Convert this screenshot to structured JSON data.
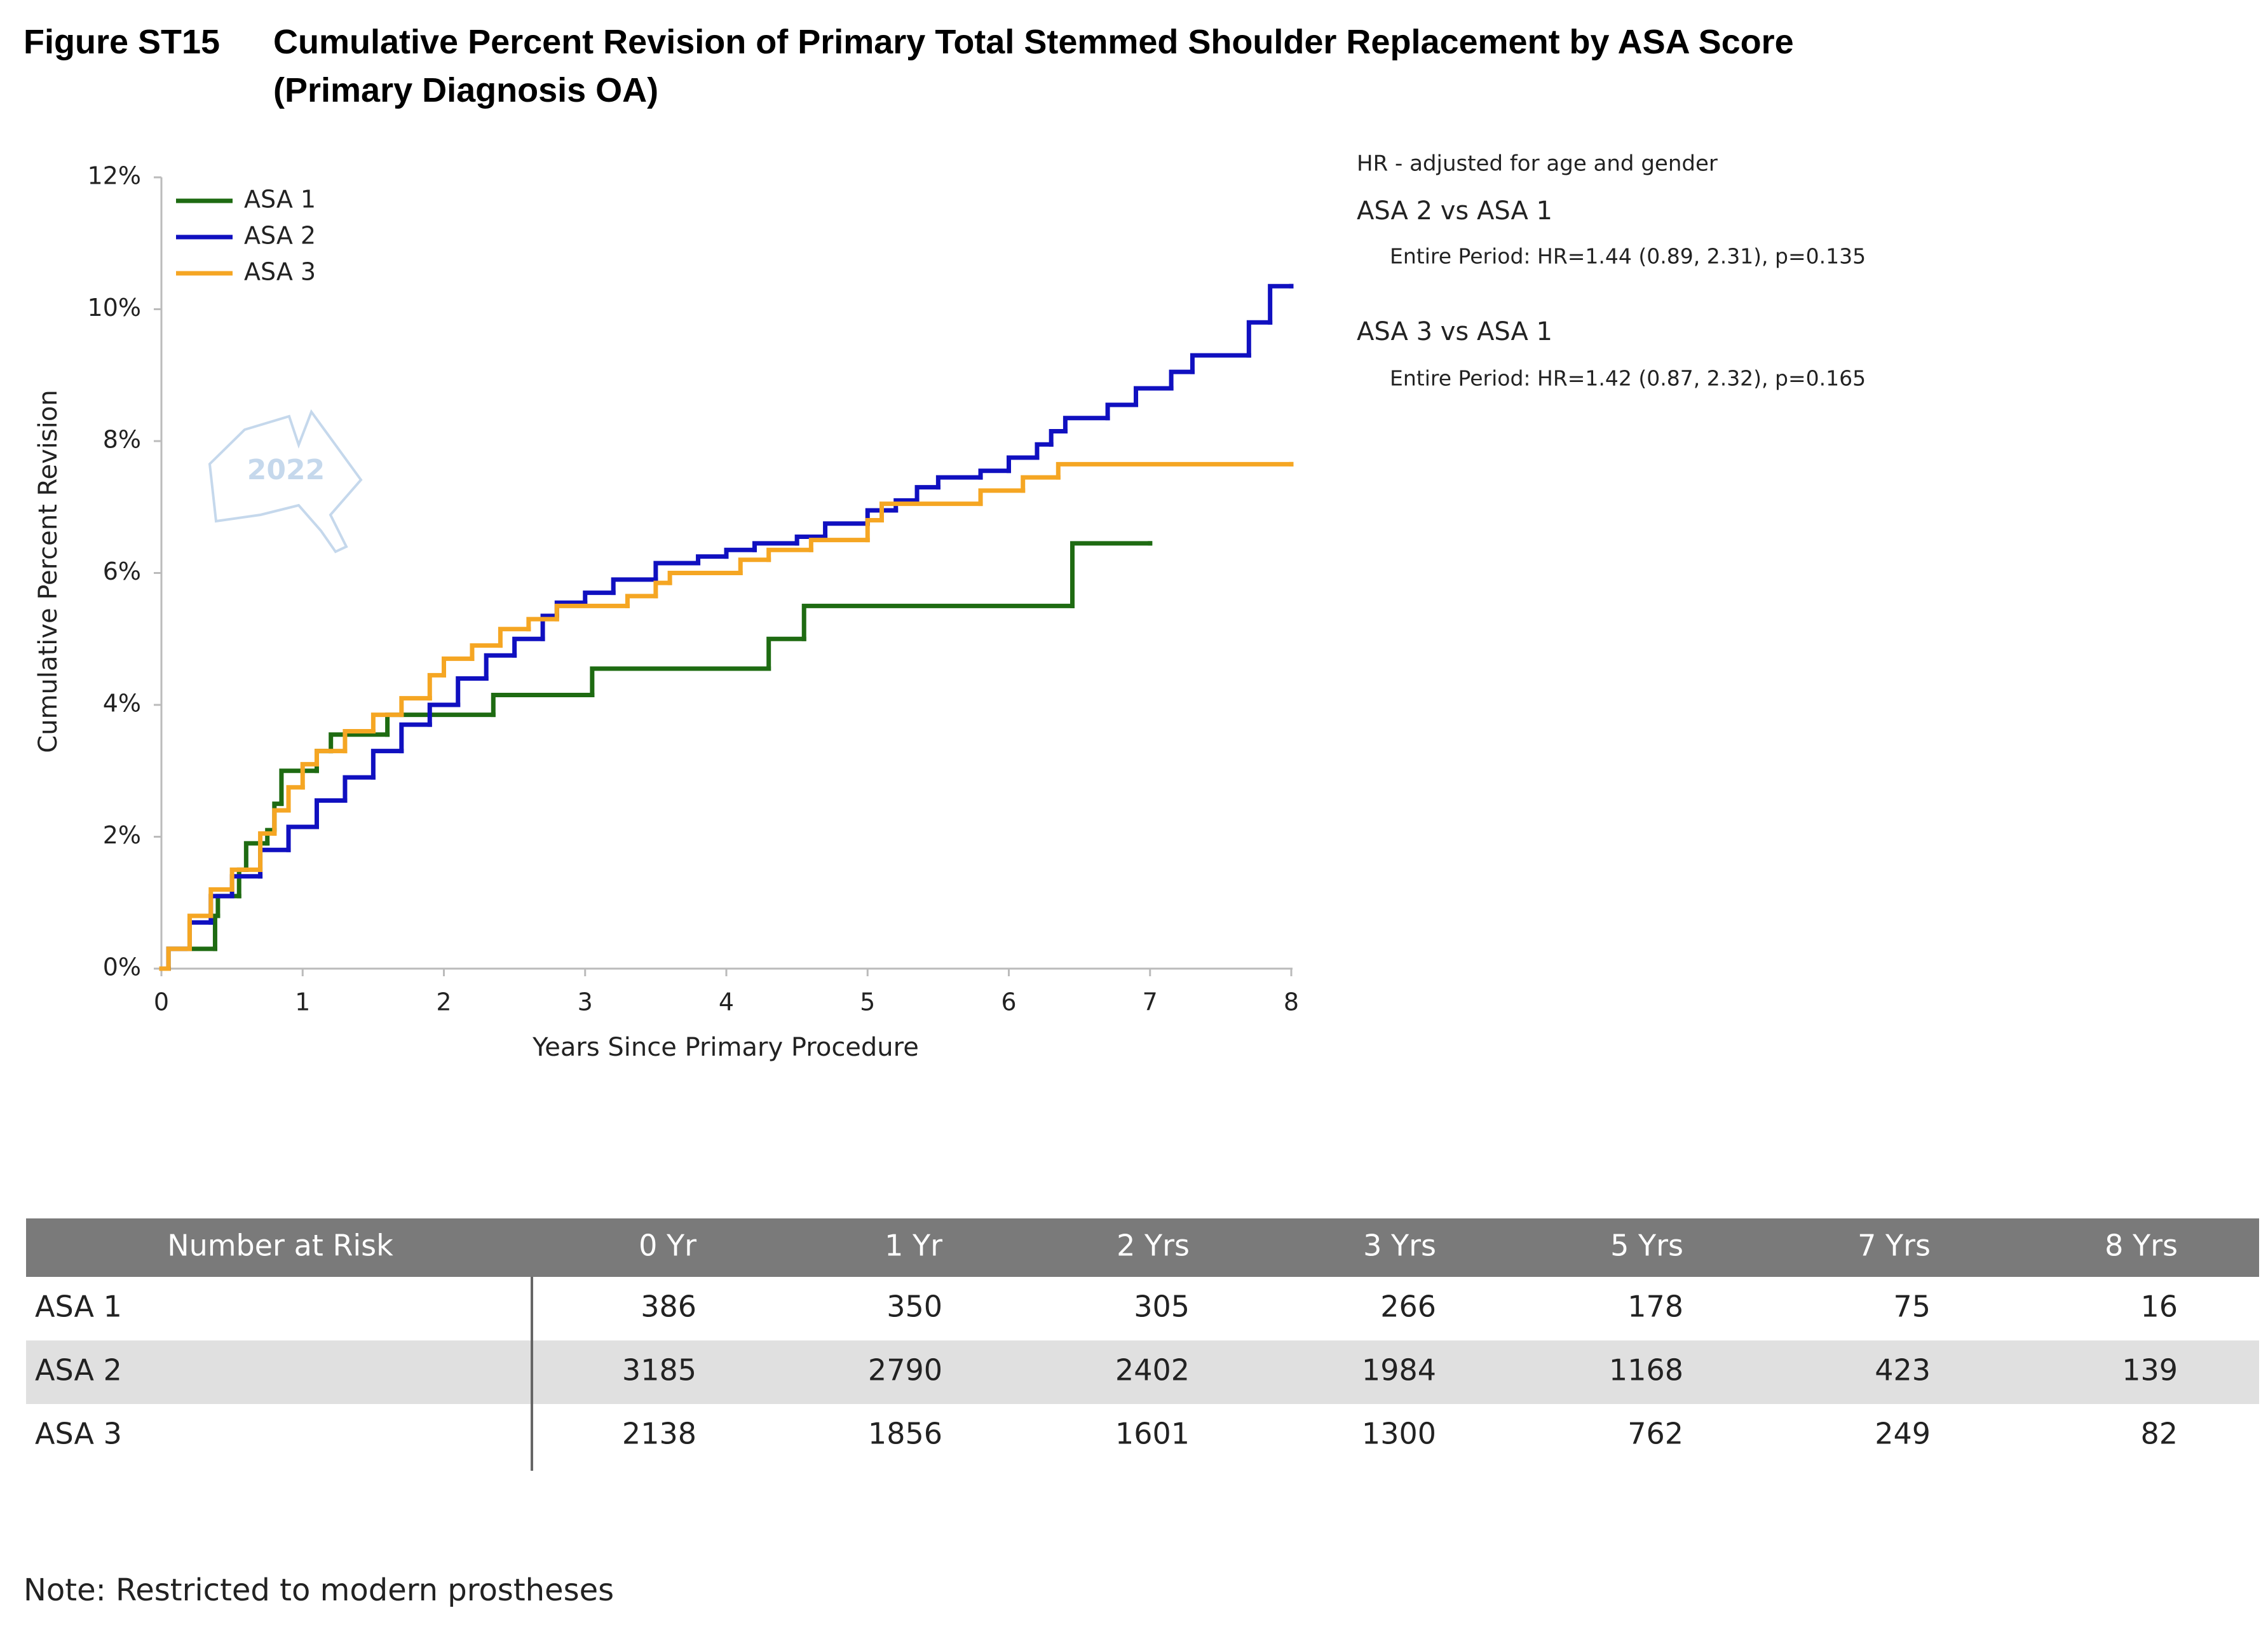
{
  "figure_label": "Figure ST15",
  "chart_data": {
    "type": "line",
    "drawstyle": "steps-post",
    "title": "Cumulative Percent Revision of Primary Total Stemmed Shoulder Replacement by ASA Score (Primary Diagnosis OA)",
    "xlabel": "Years Since Primary Procedure",
    "ylabel": "Cumulative Percent Revision",
    "xlim": [
      0,
      8
    ],
    "xticks": [
      0,
      1,
      2,
      3,
      4,
      5,
      6,
      7,
      8
    ],
    "ylim": [
      0,
      12
    ],
    "yticks": [
      {
        "value": 0,
        "label": "0%"
      },
      {
        "value": 2,
        "label": "2%"
      },
      {
        "value": 4,
        "label": "4%"
      },
      {
        "value": 6,
        "label": "6%"
      },
      {
        "value": 8,
        "label": "8%"
      },
      {
        "value": 10,
        "label": "10%"
      },
      {
        "value": 12,
        "label": "12%"
      }
    ],
    "legend": "upper left",
    "series": [
      {
        "name": "ASA 1",
        "color": "#1e6b12",
        "x": [
          0,
          0.05,
          0.38,
          0.4,
          0.55,
          0.6,
          0.75,
          0.8,
          0.85,
          1.1,
          1.2,
          1.6,
          2.35,
          3.05,
          4.3,
          4.55,
          6.45,
          7.0
        ],
        "values": [
          0,
          0.3,
          0.8,
          1.1,
          1.5,
          1.9,
          2.1,
          2.5,
          3.0,
          3.3,
          3.55,
          3.85,
          4.15,
          4.55,
          5.0,
          5.5,
          6.45,
          6.45
        ]
      },
      {
        "name": "ASA 2",
        "color": "#1010c0",
        "x": [
          0,
          0.05,
          0.2,
          0.35,
          0.5,
          0.7,
          0.9,
          1.1,
          1.3,
          1.5,
          1.7,
          1.9,
          2.1,
          2.3,
          2.5,
          2.7,
          2.8,
          3.0,
          3.2,
          3.5,
          3.8,
          4.0,
          4.2,
          4.5,
          4.7,
          5.0,
          5.2,
          5.35,
          5.5,
          5.8,
          6.0,
          6.2,
          6.3,
          6.4,
          6.7,
          6.9,
          7.15,
          7.3,
          7.7,
          7.85,
          8.0
        ],
        "values": [
          0,
          0.3,
          0.7,
          1.1,
          1.4,
          1.8,
          2.15,
          2.55,
          2.9,
          3.3,
          3.7,
          4.0,
          4.4,
          4.75,
          5.0,
          5.35,
          5.55,
          5.7,
          5.9,
          6.15,
          6.25,
          6.35,
          6.45,
          6.55,
          6.75,
          6.95,
          7.1,
          7.3,
          7.45,
          7.55,
          7.75,
          7.95,
          8.15,
          8.35,
          8.55,
          8.8,
          9.05,
          9.3,
          9.8,
          10.35,
          10.35
        ]
      },
      {
        "name": "ASA 3",
        "color": "#f5a623",
        "x": [
          0,
          0.05,
          0.2,
          0.35,
          0.5,
          0.7,
          0.8,
          0.9,
          1.0,
          1.1,
          1.3,
          1.5,
          1.7,
          1.9,
          2.0,
          2.2,
          2.4,
          2.6,
          2.8,
          3.3,
          3.5,
          3.6,
          4.1,
          4.3,
          4.6,
          5.0,
          5.1,
          5.8,
          6.1,
          6.35,
          8.0
        ],
        "values": [
          0,
          0.3,
          0.8,
          1.2,
          1.5,
          2.05,
          2.4,
          2.75,
          3.1,
          3.3,
          3.6,
          3.85,
          4.1,
          4.45,
          4.7,
          4.9,
          5.15,
          5.3,
          5.5,
          5.65,
          5.85,
          6.0,
          6.2,
          6.35,
          6.5,
          6.8,
          7.05,
          7.25,
          7.45,
          7.65,
          7.65
        ]
      }
    ]
  },
  "watermark": "2022",
  "annotations": [
    "HR - adjusted for age and gender",
    "ASA 2 vs ASA 1",
    "Entire Period: HR=1.44 (0.89, 2.31), p=0.135",
    "ASA 3 vs ASA 1",
    "Entire Period: HR=1.42 (0.87, 2.32), p=0.165"
  ],
  "table": {
    "header": [
      "Number at Risk",
      "0 Yr",
      "1 Yr",
      "2 Yrs",
      "3 Yrs",
      "5 Yrs",
      "7 Yrs",
      "8 Yrs"
    ],
    "rows": [
      [
        "ASA 1",
        386,
        350,
        305,
        266,
        178,
        75,
        16
      ],
      [
        "ASA 2",
        3185,
        2790,
        2402,
        1984,
        1168,
        423,
        139
      ],
      [
        "ASA 3",
        2138,
        1856,
        1601,
        1300,
        762,
        249,
        82
      ]
    ]
  },
  "note": "Note: Restricted to modern prostheses"
}
